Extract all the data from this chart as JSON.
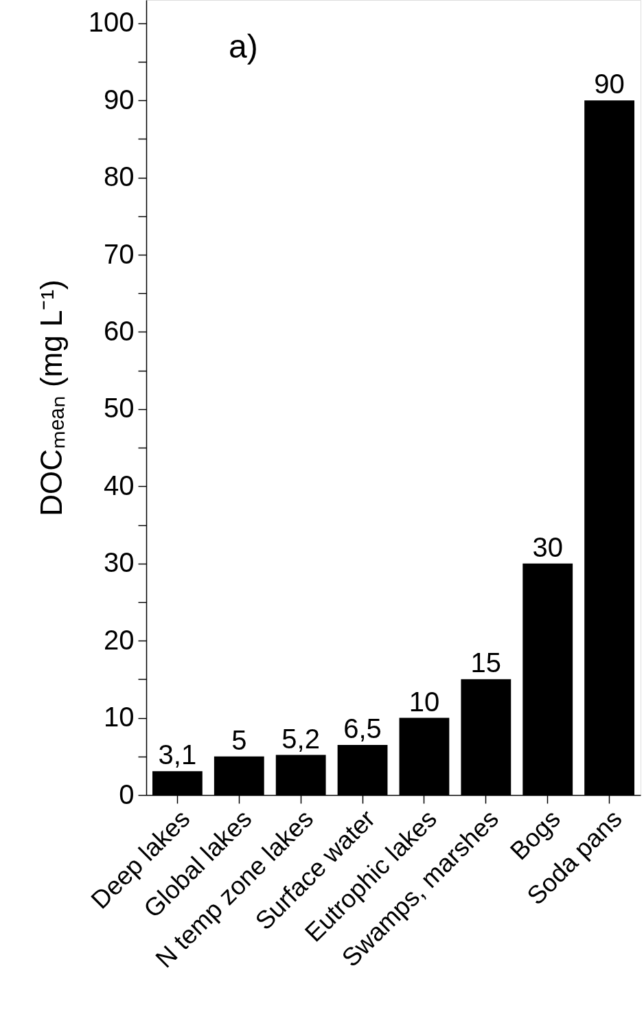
{
  "chart_data": {
    "type": "bar",
    "ylabel": "DOCₘₑₐₙ (mg L⁻¹)",
    "annotations": [
      "a)"
    ],
    "categories": [
      "Deep lakes",
      "Global lakes",
      "N temp zone lakes",
      "Surface water",
      "Eutrophic lakes",
      "Swamps, marshes",
      "Bogs",
      "Soda pans"
    ],
    "values": [
      3.1,
      5,
      5.2,
      6.5,
      10,
      15,
      30,
      90
    ],
    "value_labels": [
      "3,1",
      "5",
      "5,2",
      "6,5",
      "10",
      "15",
      "30",
      "90"
    ],
    "color": "#000000",
    "ylim": [
      0,
      103
    ],
    "yticks": [
      0,
      {
        "value": 5,
        "label": null
      },
      10,
      {
        "value": 15,
        "label": null
      },
      20,
      {
        "value": 25,
        "label": null
      },
      30,
      {
        "value": 35,
        "label": null
      },
      40,
      {
        "value": 45,
        "label": null
      },
      50,
      {
        "value": 55,
        "label": null
      },
      60,
      {
        "value": 65,
        "label": null
      },
      70,
      {
        "value": 75,
        "label": null
      },
      80,
      {
        "value": 85,
        "label": null
      },
      90,
      {
        "value": 95,
        "label": null
      },
      100
    ],
    "grid": false
  }
}
